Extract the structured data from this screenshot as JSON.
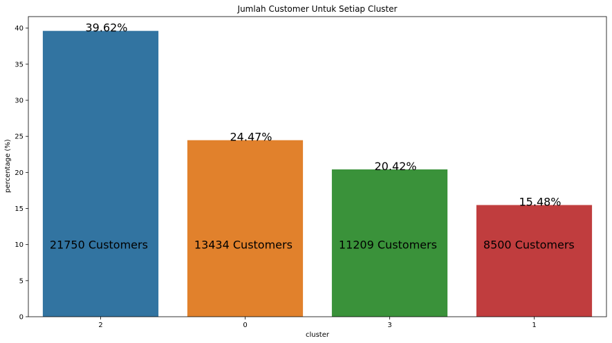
{
  "chart_data": {
    "type": "bar",
    "title": "Jumlah Customer Untuk Setiap Cluster",
    "xlabel": "cluster",
    "ylabel": "percentage (%)",
    "ylim": [
      0,
      41.6
    ],
    "yticks": [
      0,
      5,
      10,
      15,
      20,
      25,
      30,
      35,
      40
    ],
    "grid": false,
    "categories": [
      "2",
      "0",
      "3",
      "1"
    ],
    "values": [
      39.62,
      24.47,
      20.42,
      15.48
    ],
    "value_labels": [
      "39.62%",
      "24.47%",
      "20.42%",
      "15.48%"
    ],
    "customer_labels": [
      "21750 Customers",
      "13434 Customers",
      "11209 Customers",
      "8500 Customers"
    ],
    "customer_label_y": 10,
    "colors": [
      "#3274a1",
      "#e1812c",
      "#3a923a",
      "#c03d3e"
    ]
  }
}
